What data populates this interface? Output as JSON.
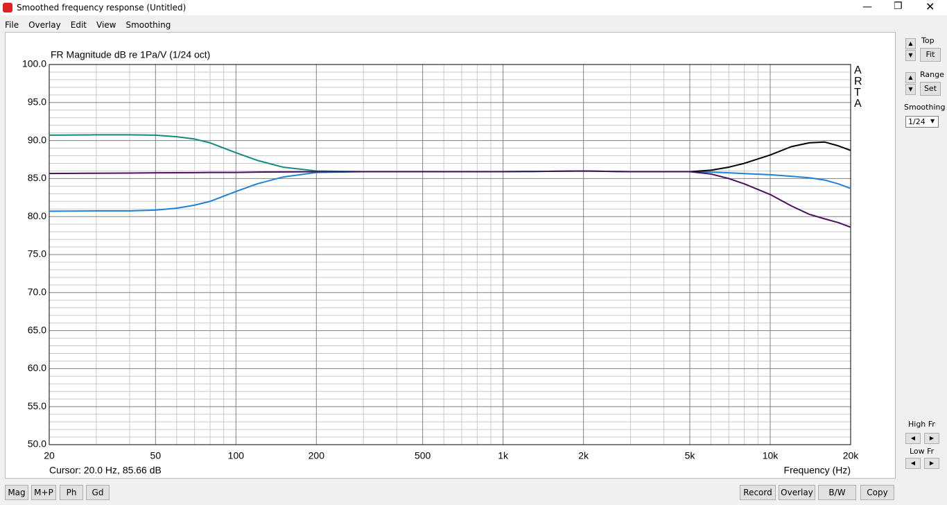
{
  "window": {
    "title": "Smoothed frequency response (Untitled)"
  },
  "menu": [
    "File",
    "Overlay",
    "Edit",
    "View",
    "Smoothing"
  ],
  "chart_data": {
    "type": "line",
    "title": "FR Magnitude dB re 1Pa/V (1/24 oct)",
    "watermark": "ARTA",
    "x_label": "Frequency (Hz)",
    "cursor": "Cursor: 20.0 Hz, 85.66 dB",
    "xscale": "log",
    "grid": true,
    "xlim": [
      20,
      20000
    ],
    "ylim": [
      50,
      100
    ],
    "xticks": [
      20,
      50,
      100,
      200,
      500,
      {
        "value": 1000,
        "label": "1k"
      },
      {
        "value": 2000,
        "label": "2k"
      },
      {
        "value": 5000,
        "label": "5k"
      },
      {
        "value": 10000,
        "label": "10k"
      },
      {
        "value": 20000,
        "label": "20k"
      }
    ],
    "x_minor_grid": [
      30,
      40,
      60,
      70,
      80,
      90,
      300,
      400,
      600,
      700,
      800,
      900,
      3000,
      4000,
      6000,
      7000,
      8000,
      9000
    ],
    "yticks": [
      {
        "value": 50,
        "label": "50.0"
      },
      {
        "value": 55,
        "label": "55.0"
      },
      {
        "value": 60,
        "label": "60.0"
      },
      {
        "value": 65,
        "label": "65.0"
      },
      {
        "value": 70,
        "label": "70.0"
      },
      {
        "value": 75,
        "label": "75.0"
      },
      {
        "value": 80,
        "label": "80.0"
      },
      {
        "value": 85,
        "label": "85.0"
      },
      {
        "value": 90,
        "label": "90.0"
      },
      {
        "value": 95,
        "label": "95.0"
      },
      {
        "value": 100,
        "label": "100.0"
      }
    ],
    "y_minor_grid": [
      51,
      52,
      53,
      54,
      56,
      57,
      58,
      59,
      61,
      62,
      63,
      64,
      66,
      67,
      68,
      69,
      71,
      72,
      73,
      74,
      76,
      77,
      78,
      79,
      81,
      82,
      83,
      84,
      86,
      87,
      88,
      89,
      91,
      92,
      93,
      94,
      96,
      97,
      98,
      99
    ],
    "x": [
      20,
      30,
      40,
      50,
      60,
      70,
      80,
      100,
      120,
      150,
      200,
      300,
      500,
      1000,
      2000,
      3000,
      5000,
      6000,
      7000,
      8000,
      10000,
      12000,
      14000,
      16000,
      18000,
      20000
    ],
    "series": [
      {
        "color": "#14897a",
        "values": [
          90.7,
          90.75,
          90.75,
          90.7,
          90.5,
          90.2,
          89.7,
          88.4,
          87.4,
          86.5,
          86.0,
          85.9,
          85.9,
          85.9,
          86.0,
          85.9,
          85.9,
          null,
          null,
          null,
          null,
          null,
          null,
          null,
          null,
          null
        ]
      },
      {
        "color": "#1f80d8",
        "values": [
          80.7,
          80.75,
          80.75,
          80.85,
          81.1,
          81.5,
          82.0,
          83.3,
          84.3,
          85.2,
          85.8,
          85.9,
          85.9,
          85.9,
          86.0,
          85.9,
          85.9,
          85.85,
          85.75,
          85.65,
          85.5,
          85.3,
          85.1,
          84.8,
          84.3,
          83.7
        ]
      },
      {
        "color": "#000000",
        "values": [
          null,
          null,
          null,
          null,
          null,
          null,
          null,
          null,
          null,
          null,
          null,
          null,
          null,
          null,
          null,
          85.9,
          85.9,
          86.1,
          86.5,
          87.0,
          88.1,
          89.2,
          89.7,
          89.8,
          89.3,
          88.7
        ]
      },
      {
        "color": "#4b0f5c",
        "values": [
          85.66,
          85.7,
          85.72,
          85.75,
          85.77,
          85.78,
          85.8,
          85.8,
          85.85,
          85.87,
          85.9,
          85.9,
          85.9,
          85.9,
          86.0,
          85.9,
          85.9,
          85.6,
          85.0,
          84.3,
          82.9,
          81.4,
          80.3,
          79.7,
          79.2,
          78.6
        ]
      }
    ]
  },
  "side_panel": {
    "top_label": "Top",
    "fit": "Fit",
    "range_label": "Range",
    "set": "Set",
    "smoothing_label": "Smoothing",
    "smoothing_value": "1/24",
    "high_fr": "High Fr",
    "low_fr": "Low Fr"
  },
  "bottom_left_buttons": [
    "Mag",
    "M+P",
    "Ph",
    "Gd"
  ],
  "bottom_right_buttons": [
    "Record",
    "Overlay",
    "B/W",
    "Copy"
  ]
}
